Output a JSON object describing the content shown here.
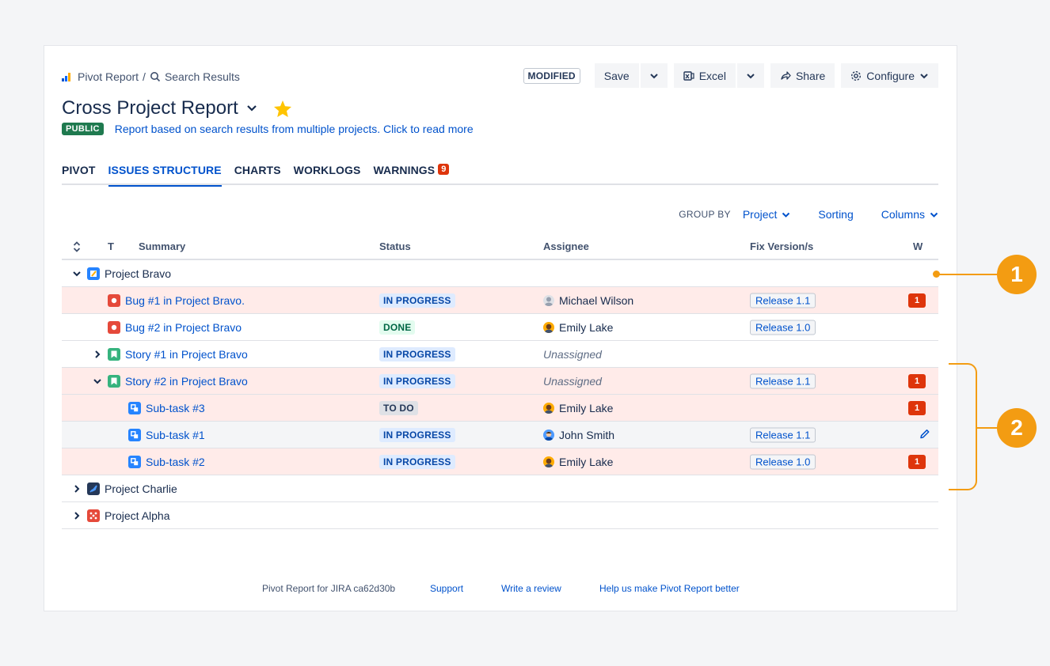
{
  "breadcrumb": {
    "root": "Pivot Report",
    "separator": "/",
    "current": "Search Results"
  },
  "toolbar": {
    "modified_badge": "MODIFIED",
    "save_label": "Save",
    "excel_label": "Excel",
    "share_label": "Share",
    "configure_label": "Configure"
  },
  "report": {
    "title": "Cross Project Report",
    "visibility": "PUBLIC",
    "description": "Report based on search results from multiple projects. Click to read more"
  },
  "tabs": [
    {
      "label": "PIVOT"
    },
    {
      "label": "ISSUES STRUCTURE",
      "active": true
    },
    {
      "label": "CHARTS"
    },
    {
      "label": "WORKLOGS"
    },
    {
      "label": "WARNINGS",
      "count": "9"
    }
  ],
  "controls": {
    "group_by_label": "GROUP BY",
    "group_by_value": "Project",
    "sorting": "Sorting",
    "columns": "Columns"
  },
  "table": {
    "headers": {
      "type": "T",
      "summary": "Summary",
      "status": "Status",
      "assignee": "Assignee",
      "fix_versions": "Fix Version/s",
      "warnings": "W"
    },
    "rows": [
      {
        "summary": "Project Bravo"
      },
      {
        "summary": "Bug #1 in Project Bravo.",
        "status": "IN PROGRESS",
        "assignee": "Michael Wilson",
        "version": "Release 1.1",
        "warnings": "1"
      },
      {
        "summary": "Bug #2 in Project Bravo",
        "status": "DONE",
        "assignee": "Emily Lake",
        "version": "Release 1.0"
      },
      {
        "summary": "Story #1 in Project Bravo",
        "status": "IN PROGRESS",
        "assignee": "Unassigned"
      },
      {
        "summary": "Story #2 in Project Bravo",
        "status": "IN PROGRESS",
        "assignee": "Unassigned",
        "version": "Release 1.1",
        "warnings": "1"
      },
      {
        "summary": "Sub-task #3",
        "status": "TO DO",
        "assignee": "Emily Lake",
        "warnings": "1"
      },
      {
        "summary": "Sub-task #1",
        "status": "IN PROGRESS",
        "assignee": "John Smith",
        "version": "Release 1.1"
      },
      {
        "summary": "Sub-task #2",
        "status": "IN PROGRESS",
        "assignee": "Emily Lake",
        "version": "Release 1.0",
        "warnings": "1"
      },
      {
        "summary": "Project Charlie"
      },
      {
        "summary": "Project Alpha"
      }
    ]
  },
  "footer": {
    "version": "Pivot Report for JIRA ca62d30b",
    "support": "Support",
    "review": "Write a review",
    "feedback": "Help us make Pivot Report better"
  },
  "callouts": [
    "1",
    "2"
  ],
  "colors": {
    "accent": "#0052cc",
    "callout": "#f39c12",
    "warning_row": "#ffebe9",
    "public": "#1f7a4f",
    "danger": "#de350b"
  },
  "icons": [
    "pivot-report-icon",
    "search-icon",
    "excel-icon",
    "share-icon",
    "gear-icon",
    "star-icon",
    "bug-icon",
    "story-icon",
    "subtask-icon",
    "edit-icon",
    "chevron-down-icon",
    "chevron-right-icon",
    "sort-icon"
  ]
}
